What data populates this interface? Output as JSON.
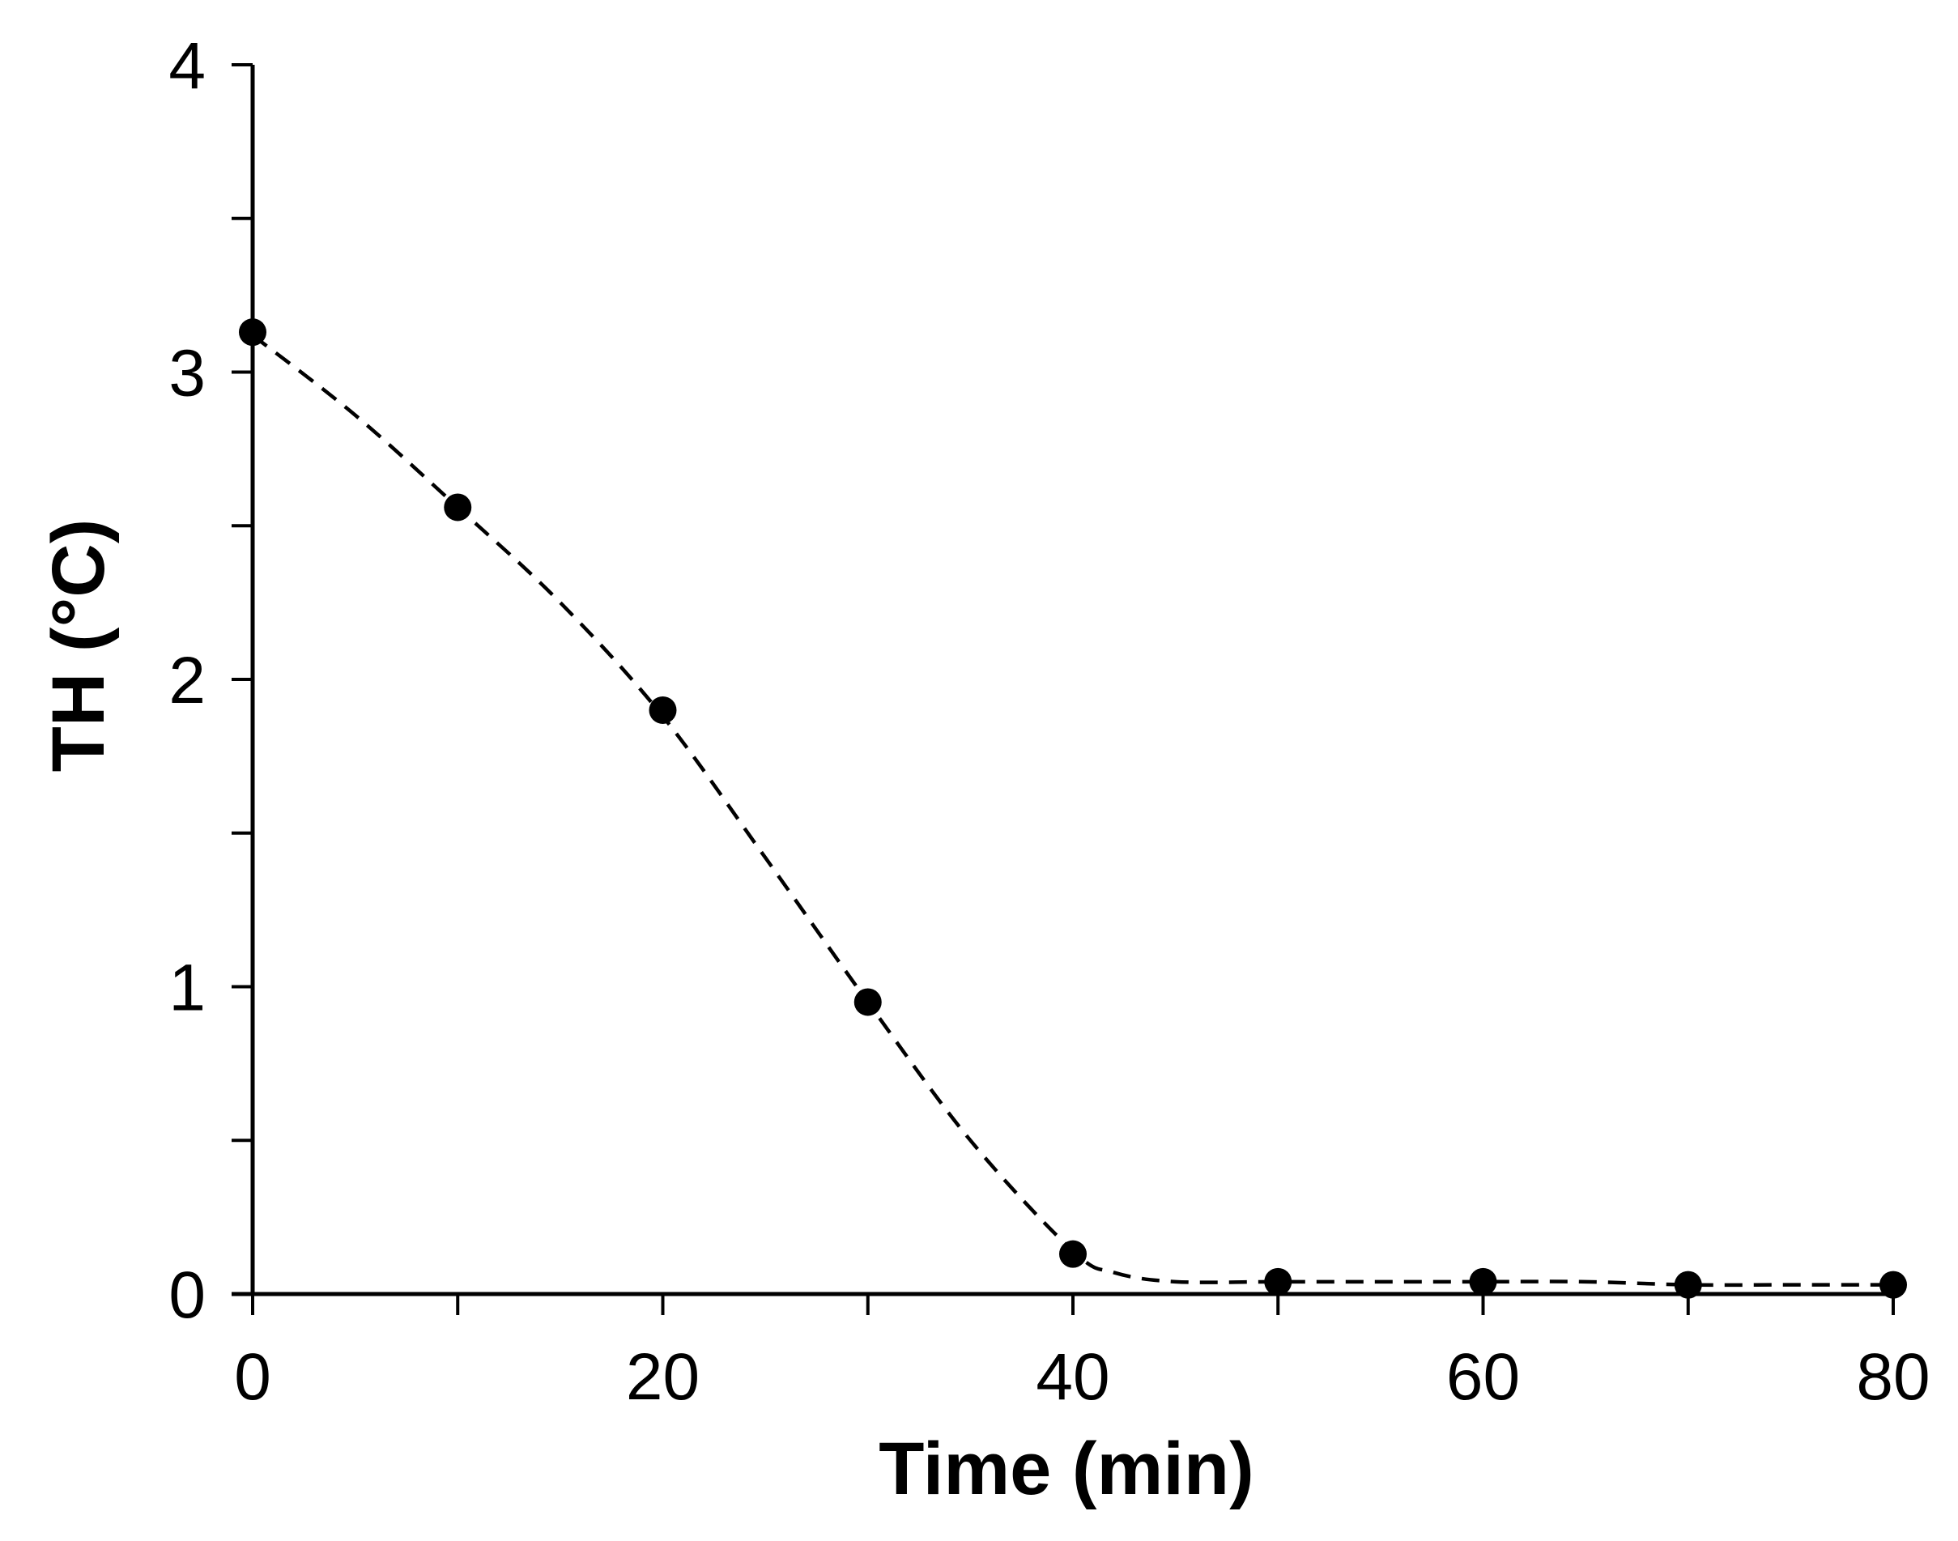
{
  "chart_data": {
    "type": "scatter",
    "title": "",
    "xlabel": "Time (min)",
    "ylabel": "TH (°C)",
    "xlim": [
      0,
      80
    ],
    "ylim": [
      0,
      4
    ],
    "x_ticks": [
      0,
      20,
      40,
      60,
      80
    ],
    "x_minor_ticks": [
      0,
      10,
      20,
      30,
      40,
      50,
      60,
      70,
      80
    ],
    "y_ticks": [
      0,
      1,
      2,
      3,
      4
    ],
    "y_minor_ticks": [
      0,
      0.5,
      1,
      1.5,
      2,
      2.5,
      3,
      3.5,
      4
    ],
    "grid": false,
    "legend": "none",
    "series": [
      {
        "marker": "filled-circle",
        "color": "#000000",
        "x": [
          0,
          10,
          20,
          30,
          40,
          50,
          60,
          70,
          80
        ],
        "y": [
          3.13,
          2.56,
          1.9,
          0.95,
          0.13,
          0.04,
          0.04,
          0.03,
          0.03
        ]
      }
    ],
    "fit_line": {
      "style": "dashed",
      "color": "#000000",
      "x": [
        0,
        5,
        10,
        15,
        20,
        25,
        30,
        35,
        40,
        42,
        45,
        50,
        55,
        60,
        65,
        70,
        75,
        80
      ],
      "y": [
        3.12,
        2.86,
        2.56,
        2.25,
        1.88,
        1.42,
        0.95,
        0.5,
        0.14,
        0.07,
        0.04,
        0.04,
        0.04,
        0.04,
        0.04,
        0.03,
        0.03,
        0.03
      ]
    }
  }
}
